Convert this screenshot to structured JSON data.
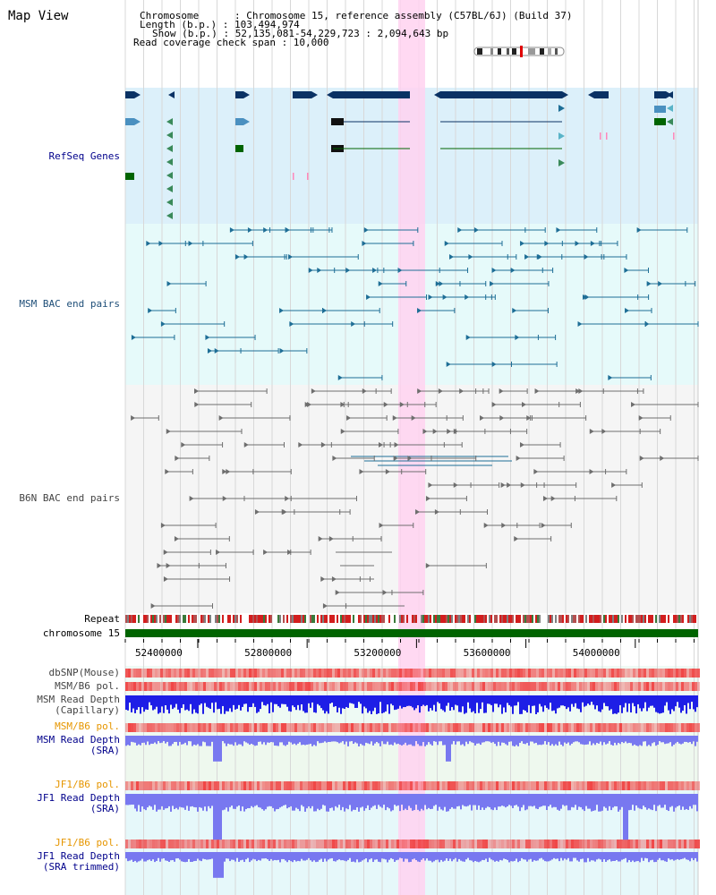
{
  "header": {
    "title": "Map View",
    "chromosome_line": "Chromosome      : Chromosome 15, reference assembly (C57BL/6J) (Build 37)",
    "length_line": "Length (b.p.) : 103,494,974",
    "show_line": "Show (b.p.) : 52,135,081-54,229,723 : 2,094,643 bp",
    "coverage_line": "Read coverage check span : 10,000"
  },
  "colors": {
    "refseq_bg": "#dcf0fa",
    "msm_bg": "#e6fafa",
    "b6n_bg": "#f5f5f5",
    "highlight": "#ffd2f0",
    "gene_dark": "#0a3264",
    "msm_pair": "#1e6e96",
    "b6n_pair": "#6e6e6e",
    "chrom_bar": "#006400",
    "depth_blue": "#1e1ee6",
    "depth_light": "#7878f0",
    "pol_red": "#f03c3c"
  },
  "tracks": {
    "refseq": {
      "label": "RefSeq Genes",
      "color": "#00008b"
    },
    "msm_bac": {
      "label": "MSM BAC end pairs",
      "color": "#1e4e78"
    },
    "b6n_bac": {
      "label": "B6N BAC end pairs",
      "color": "#444444"
    },
    "repeat": {
      "label": "Repeat",
      "color": "#000000"
    },
    "chromosome": {
      "label": "chromosome 15",
      "color": "#000000"
    },
    "dbsnp": {
      "label": "dbSNP(Mouse)",
      "color": "#444444"
    },
    "msm_b6_pol_1": {
      "label": "MSM/B6 pol.",
      "color": "#444444"
    },
    "msm_depth_cap": {
      "label": "MSM Read Depth\n(Capillary)",
      "color": "#444444"
    },
    "msm_b6_pol_2": {
      "label": "MSM/B6 pol.",
      "color": "#e69600"
    },
    "msm_depth_sra": {
      "label": "MSM Read Depth\n(SRA)",
      "color": "#00008b"
    },
    "jf1_b6_pol_1": {
      "label": "JF1/B6 pol.",
      "color": "#e69600"
    },
    "jf1_depth_sra": {
      "label": "JF1 Read Depth\n(SRA)",
      "color": "#00008b"
    },
    "jf1_b6_pol_2": {
      "label": "JF1/B6 pol.",
      "color": "#e69600"
    },
    "jf1_depth_trim": {
      "label": "JF1 Read Depth\n(SRA trimmed)",
      "color": "#00008b"
    }
  },
  "axis": {
    "ticks": [
      "52400000",
      "52800000",
      "53200000",
      "53600000",
      "54000000"
    ],
    "tick_values": [
      52400000,
      52800000,
      53200000,
      53600000,
      54000000
    ],
    "view_start": 52135081,
    "view_end": 54229723
  },
  "ideogram": {
    "marker": "current region"
  }
}
